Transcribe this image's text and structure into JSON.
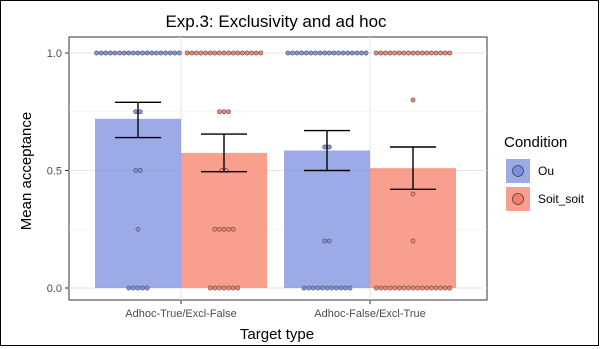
{
  "chart_data": {
    "type": "bar",
    "title": "Exp.3: Exclusivity and ad hoc",
    "xlabel": "Target type",
    "ylabel": "Mean acceptance",
    "ylim": [
      0,
      1.05
    ],
    "yticks": [
      0.0,
      0.5,
      1.0
    ],
    "ytick_labels": [
      "0.0",
      "0.5",
      "1.0"
    ],
    "categories": [
      "Adhoc-True/Excl-False",
      "Adhoc-False/Excl-True"
    ],
    "grid": true,
    "legend": {
      "title": "Condition",
      "position": "right",
      "entries": [
        "Ou",
        "Soit_soit"
      ]
    },
    "series": [
      {
        "name": "Ou",
        "color": "#7b8fe0",
        "values": [
          0.72,
          0.585
        ],
        "error_low": [
          0.64,
          0.5
        ],
        "error_high": [
          0.79,
          0.67
        ],
        "points": [
          {
            "y": 1.0,
            "count": 19
          },
          {
            "y": 0.75,
            "count": 2
          },
          {
            "y": 0.5,
            "count": 2
          },
          {
            "y": 0.25,
            "count": 1
          },
          {
            "y": 0.0,
            "count": 5
          }
        ],
        "points_2": [
          {
            "y": 1.0,
            "count": 18
          },
          {
            "y": 0.6,
            "count": 2
          },
          {
            "y": 0.2,
            "count": 2
          },
          {
            "y": 0.0,
            "count": 11
          }
        ]
      },
      {
        "name": "Soit_soit",
        "color": "#f77f68",
        "values": [
          0.575,
          0.51
        ],
        "error_low": [
          0.495,
          0.42
        ],
        "error_high": [
          0.655,
          0.6
        ],
        "points": [
          {
            "y": 1.0,
            "count": 17
          },
          {
            "y": 0.75,
            "count": 3
          },
          {
            "y": 0.5,
            "count": 2
          },
          {
            "y": 0.25,
            "count": 5
          },
          {
            "y": 0.0,
            "count": 7
          }
        ],
        "points_2": [
          {
            "y": 1.0,
            "count": 17
          },
          {
            "y": 0.8,
            "count": 1
          },
          {
            "y": 0.4,
            "count": 1
          },
          {
            "y": 0.2,
            "count": 1
          },
          {
            "y": 0.0,
            "count": 17
          }
        ]
      }
    ]
  }
}
